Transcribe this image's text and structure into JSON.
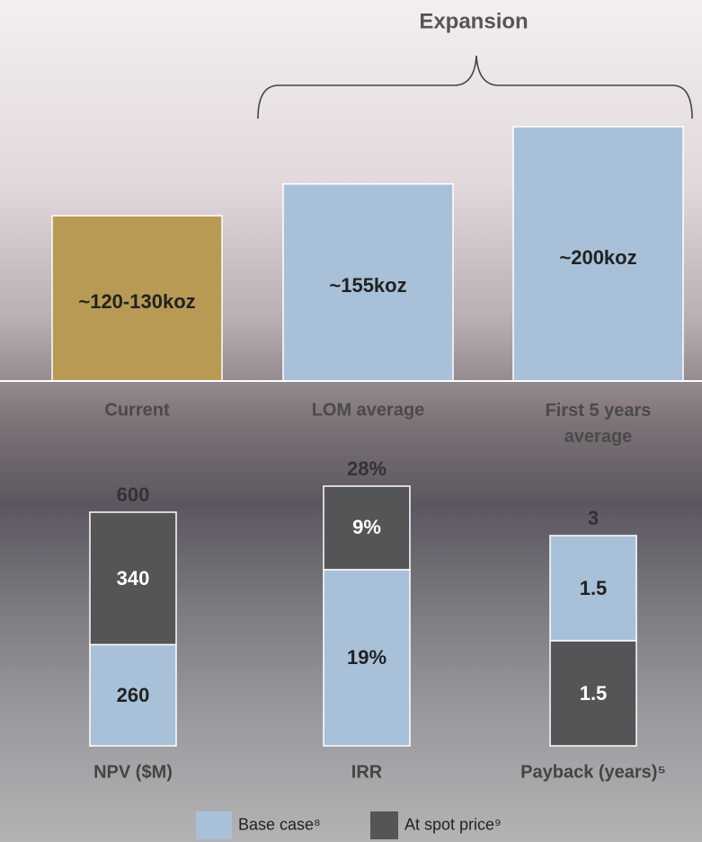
{
  "chart_data": [
    {
      "type": "bar",
      "annotation": "Expansion",
      "categories": [
        "Current",
        "LOM average",
        "First 5 years average"
      ],
      "values": [
        130,
        155,
        200
      ],
      "value_labels": [
        "~120-130koz",
        "~155koz",
        "~200koz"
      ],
      "colors": [
        "#b89a55",
        "#a9c0d9",
        "#a9c0d9"
      ]
    },
    {
      "type": "stacked-bar",
      "categories": [
        "NPV ($M)",
        "IRR",
        "Payback (years)⁵"
      ],
      "series": [
        {
          "name": "Base case⁸",
          "color": "#a9c0d9",
          "values": [
            260,
            19,
            1.5
          ],
          "value_labels": [
            null,
            "19%",
            null
          ]
        },
        {
          "name": "At spot price⁹",
          "color": "#555557",
          "values": [
            340,
            9,
            1.5
          ],
          "value_labels": [
            null,
            "9%",
            null
          ]
        }
      ],
      "totals": [
        600,
        28,
        3
      ],
      "total_labels": [
        null,
        "28%",
        null
      ],
      "bottom_series": [
        0,
        0,
        1
      ]
    }
  ]
}
